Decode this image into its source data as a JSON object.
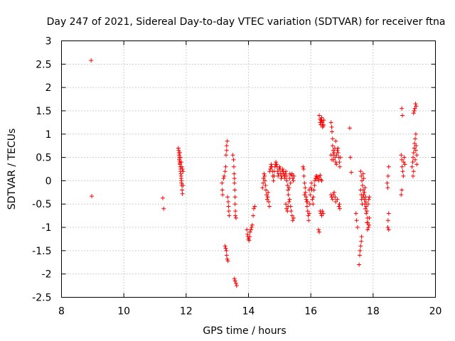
{
  "chart_data": {
    "type": "scatter",
    "title": "Day 247 of 2021, Sidereal Day-to-day VTEC variation (SDTVAR) for receiver ftna",
    "xlabel": "GPS time / hours",
    "ylabel": "SDTVAR / TECUs",
    "xlim": [
      8,
      20
    ],
    "ylim": [
      -2.5,
      3
    ],
    "xticks": [
      "8",
      "10",
      "12",
      "14",
      "16",
      "18",
      "20"
    ],
    "yticks": [
      "3",
      "2.5",
      "2",
      "1.5",
      "1",
      "0.5",
      "0",
      "-0.5",
      "-1",
      "-1.5",
      "-2",
      "-2.5"
    ],
    "grid": true,
    "marker": "+",
    "color": "#ff0000",
    "points": [
      [
        8.95,
        2.58
      ],
      [
        8.97,
        -0.33
      ],
      [
        11.25,
        -0.37
      ],
      [
        11.28,
        -0.6
      ],
      [
        11.75,
        0.7
      ],
      [
        11.76,
        0.65
      ],
      [
        11.77,
        0.6
      ],
      [
        11.77,
        0.55
      ],
      [
        11.78,
        0.5
      ],
      [
        11.78,
        0.46
      ],
      [
        11.79,
        0.42
      ],
      [
        11.8,
        0.38
      ],
      [
        11.8,
        0.35
      ],
      [
        11.81,
        0.3
      ],
      [
        11.82,
        0.25
      ],
      [
        11.82,
        0.2
      ],
      [
        11.83,
        0.15
      ],
      [
        11.84,
        0.1
      ],
      [
        11.84,
        0.05
      ],
      [
        11.85,
        0.0
      ],
      [
        11.85,
        -0.05
      ],
      [
        11.86,
        -0.1
      ],
      [
        11.87,
        -0.2
      ],
      [
        11.88,
        -0.28
      ],
      [
        11.8,
        0.6
      ],
      [
        11.82,
        0.5
      ],
      [
        11.84,
        0.4
      ],
      [
        11.86,
        0.3
      ],
      [
        11.88,
        0.25
      ],
      [
        11.9,
        0.2
      ],
      [
        11.9,
        -0.1
      ],
      [
        13.15,
        -0.05
      ],
      [
        13.16,
        -0.2
      ],
      [
        13.17,
        -0.3
      ],
      [
        13.2,
        0.05
      ],
      [
        13.22,
        0.1
      ],
      [
        13.25,
        0.2
      ],
      [
        13.27,
        0.3
      ],
      [
        13.28,
        0.55
      ],
      [
        13.3,
        0.65
      ],
      [
        13.3,
        0.75
      ],
      [
        13.32,
        0.85
      ],
      [
        13.33,
        -0.35
      ],
      [
        13.35,
        -0.45
      ],
      [
        13.36,
        -0.55
      ],
      [
        13.37,
        -0.65
      ],
      [
        13.38,
        -0.75
      ],
      [
        13.25,
        -1.4
      ],
      [
        13.27,
        -1.45
      ],
      [
        13.29,
        -1.5
      ],
      [
        13.3,
        -1.6
      ],
      [
        13.32,
        -1.68
      ],
      [
        13.34,
        -1.72
      ],
      [
        13.5,
        0.55
      ],
      [
        13.52,
        0.45
      ],
      [
        13.53,
        0.3
      ],
      [
        13.54,
        0.15
      ],
      [
        13.55,
        0.05
      ],
      [
        13.55,
        -0.05
      ],
      [
        13.56,
        -0.2
      ],
      [
        13.57,
        -0.35
      ],
      [
        13.57,
        -0.5
      ],
      [
        13.58,
        -0.65
      ],
      [
        13.58,
        -0.75
      ],
      [
        13.6,
        -0.8
      ],
      [
        13.55,
        -2.1
      ],
      [
        13.57,
        -2.15
      ],
      [
        13.6,
        -2.2
      ],
      [
        13.62,
        -2.25
      ],
      [
        13.95,
        -1.05
      ],
      [
        13.97,
        -1.15
      ],
      [
        13.98,
        -1.2
      ],
      [
        14.0,
        -1.25
      ],
      [
        14.02,
        -1.28
      ],
      [
        14.04,
        -1.2
      ],
      [
        14.05,
        -1.1
      ],
      [
        14.08,
        -1.05
      ],
      [
        14.1,
        -1.0
      ],
      [
        14.12,
        -0.95
      ],
      [
        14.15,
        -0.75
      ],
      [
        14.17,
        -0.6
      ],
      [
        14.2,
        -0.55
      ],
      [
        14.45,
        -0.15
      ],
      [
        14.47,
        -0.05
      ],
      [
        14.48,
        0.05
      ],
      [
        14.5,
        0.15
      ],
      [
        14.52,
        0.1
      ],
      [
        14.53,
        0.0
      ],
      [
        14.55,
        -0.1
      ],
      [
        14.56,
        -0.2
      ],
      [
        14.58,
        -0.3
      ],
      [
        14.6,
        -0.4
      ],
      [
        14.62,
        -0.35
      ],
      [
        14.63,
        -0.25
      ],
      [
        14.65,
        -0.45
      ],
      [
        14.67,
        -0.55
      ],
      [
        14.68,
        0.2
      ],
      [
        14.7,
        0.25
      ],
      [
        14.72,
        0.3
      ],
      [
        14.73,
        0.35
      ],
      [
        14.75,
        0.3
      ],
      [
        14.77,
        0.2
      ],
      [
        14.78,
        0.1
      ],
      [
        14.8,
        0.0
      ],
      [
        14.82,
        0.1
      ],
      [
        14.83,
        0.2
      ],
      [
        14.85,
        0.3
      ],
      [
        14.87,
        0.35
      ],
      [
        14.88,
        0.4
      ],
      [
        14.9,
        0.35
      ],
      [
        14.92,
        0.3
      ],
      [
        14.93,
        0.2
      ],
      [
        14.95,
        0.1
      ],
      [
        14.97,
        0.15
      ],
      [
        14.98,
        0.25
      ],
      [
        15.0,
        0.3
      ],
      [
        15.02,
        0.25
      ],
      [
        15.03,
        0.15
      ],
      [
        15.05,
        0.05
      ],
      [
        15.07,
        0.1
      ],
      [
        15.08,
        0.2
      ],
      [
        15.1,
        0.25
      ],
      [
        15.12,
        0.2
      ],
      [
        15.13,
        0.15
      ],
      [
        15.15,
        0.1
      ],
      [
        15.17,
        0.05
      ],
      [
        15.18,
        0.15
      ],
      [
        15.2,
        0.2
      ],
      [
        15.22,
        0.1
      ],
      [
        15.23,
        0.0
      ],
      [
        15.25,
        -0.1
      ],
      [
        15.27,
        -0.2
      ],
      [
        15.28,
        -0.3
      ],
      [
        15.3,
        -0.15
      ],
      [
        15.32,
        0.05
      ],
      [
        15.33,
        0.15
      ],
      [
        15.35,
        -0.05
      ],
      [
        15.37,
        0.12
      ],
      [
        15.2,
        -0.5
      ],
      [
        15.22,
        -0.6
      ],
      [
        15.25,
        -0.65
      ],
      [
        15.27,
        -0.55
      ],
      [
        15.3,
        -0.45
      ],
      [
        15.32,
        -0.4
      ],
      [
        15.35,
        -0.55
      ],
      [
        15.37,
        -0.65
      ],
      [
        15.4,
        -0.75
      ],
      [
        15.42,
        -0.85
      ],
      [
        15.45,
        -0.8
      ],
      [
        15.4,
        0.15
      ],
      [
        15.42,
        0.05
      ],
      [
        15.44,
        0.0
      ],
      [
        15.46,
        0.1
      ],
      [
        15.75,
        0.3
      ],
      [
        15.77,
        0.25
      ],
      [
        15.78,
        0.1
      ],
      [
        15.8,
        -0.05
      ],
      [
        15.82,
        -0.15
      ],
      [
        15.83,
        -0.25
      ],
      [
        15.85,
        -0.35
      ],
      [
        15.87,
        -0.45
      ],
      [
        15.88,
        -0.55
      ],
      [
        15.9,
        -0.65
      ],
      [
        15.92,
        -0.75
      ],
      [
        15.93,
        -0.85
      ],
      [
        15.95,
        -0.7
      ],
      [
        15.97,
        -0.5
      ],
      [
        15.98,
        -0.3
      ],
      [
        16.0,
        -0.15
      ],
      [
        16.02,
        -0.05
      ],
      [
        16.03,
        -0.2
      ],
      [
        16.05,
        -0.4
      ],
      [
        16.07,
        -0.5
      ],
      [
        16.08,
        -0.35
      ],
      [
        16.1,
        -0.2
      ],
      [
        16.12,
        -0.1
      ],
      [
        16.13,
        0.0
      ],
      [
        16.15,
        0.05
      ],
      [
        16.17,
        0.1
      ],
      [
        16.18,
        0.05
      ],
      [
        15.8,
        -0.3
      ],
      [
        15.85,
        -0.4
      ],
      [
        15.9,
        -0.45
      ],
      [
        15.95,
        -0.2
      ],
      [
        16.2,
        0.1
      ],
      [
        16.22,
        0.05
      ],
      [
        16.25,
        0.0
      ],
      [
        16.27,
        0.08
      ],
      [
        16.3,
        0.12
      ],
      [
        16.32,
        0.03
      ],
      [
        16.35,
        0.0
      ],
      [
        16.25,
        -1.05
      ],
      [
        16.27,
        -1.1
      ],
      [
        16.3,
        -0.65
      ],
      [
        16.32,
        -0.7
      ],
      [
        16.35,
        -0.75
      ],
      [
        16.37,
        -0.65
      ],
      [
        16.4,
        -0.7
      ],
      [
        16.3,
        1.25
      ],
      [
        16.32,
        1.2
      ],
      [
        16.33,
        1.3
      ],
      [
        16.35,
        1.35
      ],
      [
        16.37,
        1.25
      ],
      [
        16.38,
        1.15
      ],
      [
        16.4,
        1.2
      ],
      [
        16.42,
        1.3
      ],
      [
        16.27,
        1.4
      ],
      [
        16.3,
        1.32
      ],
      [
        16.35,
        1.28
      ],
      [
        16.4,
        1.18
      ],
      [
        16.65,
        1.25
      ],
      [
        16.67,
        1.15
      ],
      [
        16.68,
        1.05
      ],
      [
        16.7,
        0.9
      ],
      [
        16.7,
        0.75
      ],
      [
        16.72,
        0.65
      ],
      [
        16.72,
        0.55
      ],
      [
        16.73,
        0.45
      ],
      [
        16.75,
        0.6
      ],
      [
        16.77,
        0.7
      ],
      [
        16.78,
        0.5
      ],
      [
        16.8,
        0.4
      ],
      [
        16.82,
        0.35
      ],
      [
        16.83,
        0.55
      ],
      [
        16.85,
        0.65
      ],
      [
        16.87,
        0.7
      ],
      [
        16.88,
        0.6
      ],
      [
        16.9,
        0.5
      ],
      [
        16.92,
        0.4
      ],
      [
        16.93,
        0.3
      ],
      [
        16.95,
        0.5
      ],
      [
        16.65,
        0.55
      ],
      [
        16.68,
        0.45
      ],
      [
        16.8,
        0.85
      ],
      [
        16.65,
        -0.3
      ],
      [
        16.67,
        -0.35
      ],
      [
        16.7,
        -0.4
      ],
      [
        16.72,
        -0.3
      ],
      [
        16.75,
        -0.25
      ],
      [
        16.78,
        -0.35
      ],
      [
        16.8,
        -0.45
      ],
      [
        16.85,
        -0.4
      ],
      [
        16.9,
        -0.55
      ],
      [
        16.92,
        -0.5
      ],
      [
        16.93,
        -0.6
      ],
      [
        17.25,
        1.13
      ],
      [
        17.27,
        0.5
      ],
      [
        17.3,
        0.18
      ],
      [
        17.55,
        -1.8
      ],
      [
        17.57,
        -1.6
      ],
      [
        17.58,
        -1.5
      ],
      [
        17.6,
        -1.4
      ],
      [
        17.62,
        -1.3
      ],
      [
        17.63,
        -1.2
      ],
      [
        17.6,
        -0.2
      ],
      [
        17.62,
        -0.3
      ],
      [
        17.63,
        -0.4
      ],
      [
        17.65,
        -0.5
      ],
      [
        17.67,
        -0.35
      ],
      [
        17.68,
        -0.2
      ],
      [
        17.7,
        -0.3
      ],
      [
        17.72,
        -0.4
      ],
      [
        17.73,
        -0.5
      ],
      [
        17.75,
        -0.6
      ],
      [
        17.77,
        -0.45
      ],
      [
        17.78,
        -0.55
      ],
      [
        17.8,
        -0.65
      ],
      [
        17.82,
        -0.8
      ],
      [
        17.83,
        -0.9
      ],
      [
        17.85,
        -1.0
      ],
      [
        17.87,
        -0.95
      ],
      [
        17.88,
        -0.8
      ],
      [
        17.6,
        0.2
      ],
      [
        17.62,
        0.1
      ],
      [
        17.64,
        0.0
      ],
      [
        17.66,
        -0.1
      ],
      [
        17.68,
        0.15
      ],
      [
        17.7,
        0.05
      ],
      [
        17.72,
        -0.25
      ],
      [
        17.74,
        -0.15
      ],
      [
        17.76,
        -0.35
      ],
      [
        17.78,
        -0.7
      ],
      [
        17.8,
        -0.9
      ],
      [
        17.82,
        -1.05
      ],
      [
        17.84,
        -0.5
      ],
      [
        17.86,
        -0.4
      ],
      [
        17.88,
        -0.35
      ],
      [
        17.45,
        -0.7
      ],
      [
        17.47,
        -0.85
      ],
      [
        17.5,
        -1.0
      ],
      [
        18.45,
        -0.05
      ],
      [
        18.47,
        -0.15
      ],
      [
        18.48,
        0.1
      ],
      [
        18.5,
        0.3
      ],
      [
        18.5,
        -0.7
      ],
      [
        18.48,
        -0.85
      ],
      [
        18.47,
        -1.0
      ],
      [
        18.5,
        -1.05
      ],
      [
        18.9,
        0.55
      ],
      [
        18.92,
        0.45
      ],
      [
        18.93,
        0.3
      ],
      [
        18.95,
        0.2
      ],
      [
        18.97,
        0.1
      ],
      [
        18.98,
        0.4
      ],
      [
        19.0,
        0.5
      ],
      [
        19.02,
        0.35
      ],
      [
        18.92,
        1.55
      ],
      [
        18.94,
        1.4
      ],
      [
        18.9,
        -0.3
      ],
      [
        18.92,
        -0.2
      ],
      [
        19.25,
        0.3
      ],
      [
        19.27,
        0.4
      ],
      [
        19.28,
        0.5
      ],
      [
        19.3,
        0.6
      ],
      [
        19.32,
        0.7
      ],
      [
        19.33,
        0.8
      ],
      [
        19.35,
        0.9
      ],
      [
        19.37,
        1.0
      ],
      [
        19.38,
        0.75
      ],
      [
        19.4,
        0.55
      ],
      [
        19.4,
        0.35
      ],
      [
        19.3,
        1.45
      ],
      [
        19.32,
        1.5
      ],
      [
        19.34,
        1.55
      ],
      [
        19.36,
        1.65
      ],
      [
        19.38,
        1.6
      ],
      [
        19.3,
        0.2
      ],
      [
        19.28,
        0.1
      ],
      [
        19.35,
        0.45
      ],
      [
        19.37,
        0.65
      ]
    ]
  }
}
